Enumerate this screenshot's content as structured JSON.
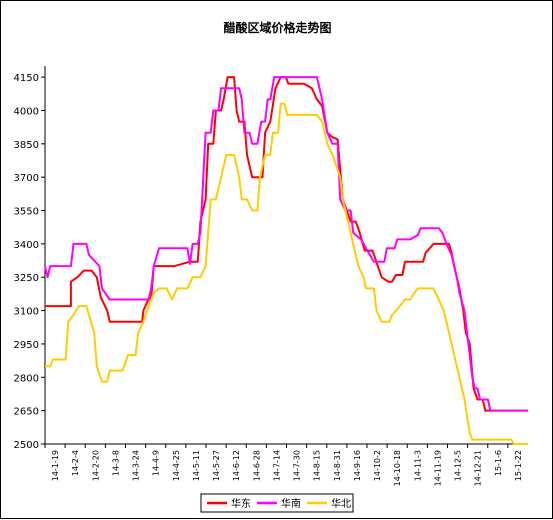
{
  "chart_data": {
    "type": "line",
    "title": "醋酸区域价格走势图",
    "ylim": [
      2500,
      4200
    ],
    "yticks": [
      2500,
      2650,
      2800,
      2950,
      3100,
      3250,
      3400,
      3550,
      3700,
      3850,
      4000,
      4150
    ],
    "x_tick_labels": [
      "14-1-19",
      "14-2-4",
      "14-2-20",
      "14-3-8",
      "14-3-24",
      "14-4-9",
      "14-4-25",
      "14-5-11",
      "14-5-27",
      "14-6-12",
      "14-6-28",
      "14-7-14",
      "14-7-30",
      "14-8-15",
      "14-8-31",
      "14-9-16",
      "14-10-2",
      "14-10-18",
      "14-11-3",
      "14-11-19",
      "14-12-5",
      "14-12-21",
      "15-1-6",
      "15-1-22"
    ],
    "x_range_days": [
      0,
      373
    ],
    "grid": false,
    "legend_placement": "bottom",
    "series": [
      {
        "name": "华东",
        "color": "#ff0000",
        "points": [
          [
            0,
            3120
          ],
          [
            20,
            3120
          ],
          [
            20,
            3230
          ],
          [
            25,
            3250
          ],
          [
            30,
            3280
          ],
          [
            36,
            3280
          ],
          [
            40,
            3250
          ],
          [
            43,
            3160
          ],
          [
            48,
            3100
          ],
          [
            50,
            3050
          ],
          [
            60,
            3050
          ],
          [
            70,
            3050
          ],
          [
            75,
            3050
          ],
          [
            76,
            3100
          ],
          [
            79,
            3140
          ],
          [
            82,
            3160
          ],
          [
            84,
            3300
          ],
          [
            90,
            3300
          ],
          [
            100,
            3300
          ],
          [
            112,
            3320
          ],
          [
            118,
            3320
          ],
          [
            120,
            3500
          ],
          [
            124,
            3600
          ],
          [
            126,
            3850
          ],
          [
            130,
            3850
          ],
          [
            132,
            4000
          ],
          [
            136,
            4000
          ],
          [
            138,
            4050
          ],
          [
            141,
            4150
          ],
          [
            146,
            4150
          ],
          [
            148,
            4000
          ],
          [
            150,
            3950
          ],
          [
            152,
            3950
          ],
          [
            154,
            3950
          ],
          [
            156,
            3800
          ],
          [
            160,
            3700
          ],
          [
            168,
            3700
          ],
          [
            170,
            3900
          ],
          [
            174,
            3950
          ],
          [
            178,
            4100
          ],
          [
            182,
            4150
          ],
          [
            186,
            4150
          ],
          [
            188,
            4120
          ],
          [
            200,
            4120
          ],
          [
            206,
            4100
          ],
          [
            210,
            4050
          ],
          [
            214,
            4020
          ],
          [
            218,
            3900
          ],
          [
            222,
            3880
          ],
          [
            226,
            3870
          ],
          [
            230,
            3600
          ],
          [
            236,
            3500
          ],
          [
            240,
            3500
          ],
          [
            243,
            3450
          ],
          [
            247,
            3370
          ],
          [
            253,
            3370
          ],
          [
            257,
            3300
          ],
          [
            260,
            3250
          ],
          [
            265,
            3230
          ],
          [
            268,
            3230
          ],
          [
            271,
            3260
          ],
          [
            276,
            3260
          ],
          [
            278,
            3320
          ],
          [
            284,
            3320
          ],
          [
            292,
            3320
          ],
          [
            294,
            3360
          ],
          [
            300,
            3400
          ],
          [
            305,
            3400
          ],
          [
            312,
            3400
          ],
          [
            314,
            3360
          ],
          [
            316,
            3300
          ],
          [
            320,
            3200
          ],
          [
            323,
            3100
          ],
          [
            325,
            3000
          ],
          [
            328,
            2950
          ],
          [
            331,
            2750
          ],
          [
            334,
            2700
          ],
          [
            338,
            2700
          ],
          [
            340,
            2650
          ],
          [
            360,
            2650
          ],
          [
            373,
            2650
          ]
        ]
      },
      {
        "name": "华南",
        "color": "#ff00ff",
        "points": [
          [
            0,
            3300
          ],
          [
            2,
            3250
          ],
          [
            4,
            3300
          ],
          [
            20,
            3300
          ],
          [
            22,
            3400
          ],
          [
            32,
            3400
          ],
          [
            34,
            3350
          ],
          [
            42,
            3300
          ],
          [
            44,
            3200
          ],
          [
            50,
            3150
          ],
          [
            60,
            3150
          ],
          [
            70,
            3150
          ],
          [
            80,
            3150
          ],
          [
            82,
            3200
          ],
          [
            84,
            3300
          ],
          [
            88,
            3380
          ],
          [
            110,
            3380
          ],
          [
            112,
            3310
          ],
          [
            114,
            3400
          ],
          [
            118,
            3400
          ],
          [
            120,
            3450
          ],
          [
            124,
            3900
          ],
          [
            128,
            3900
          ],
          [
            130,
            4000
          ],
          [
            134,
            4000
          ],
          [
            136,
            4100
          ],
          [
            140,
            4100
          ],
          [
            144,
            4100
          ],
          [
            148,
            4100
          ],
          [
            150,
            4100
          ],
          [
            152,
            4050
          ],
          [
            154,
            3900
          ],
          [
            158,
            3900
          ],
          [
            160,
            3850
          ],
          [
            164,
            3850
          ],
          [
            167,
            3950
          ],
          [
            170,
            3950
          ],
          [
            172,
            4050
          ],
          [
            174,
            4050
          ],
          [
            177,
            4150
          ],
          [
            210,
            4150
          ],
          [
            212,
            4100
          ],
          [
            214,
            4050
          ],
          [
            218,
            3900
          ],
          [
            222,
            3850
          ],
          [
            224,
            3850
          ],
          [
            226,
            3850
          ],
          [
            228,
            3600
          ],
          [
            232,
            3550
          ],
          [
            236,
            3550
          ],
          [
            238,
            3450
          ],
          [
            244,
            3420
          ],
          [
            249,
            3370
          ],
          [
            254,
            3320
          ],
          [
            262,
            3320
          ],
          [
            264,
            3380
          ],
          [
            270,
            3380
          ],
          [
            272,
            3420
          ],
          [
            282,
            3420
          ],
          [
            288,
            3440
          ],
          [
            290,
            3470
          ],
          [
            304,
            3470
          ],
          [
            307,
            3450
          ],
          [
            310,
            3400
          ],
          [
            314,
            3350
          ],
          [
            316,
            3300
          ],
          [
            318,
            3250
          ],
          [
            320,
            3180
          ],
          [
            324,
            3100
          ],
          [
            328,
            2900
          ],
          [
            330,
            2800
          ],
          [
            332,
            2750
          ],
          [
            334,
            2750
          ],
          [
            336,
            2700
          ],
          [
            342,
            2700
          ],
          [
            344,
            2650
          ],
          [
            360,
            2650
          ],
          [
            373,
            2650
          ]
        ]
      },
      {
        "name": "华北",
        "color": "#ffcc00",
        "points": [
          [
            0,
            2850
          ],
          [
            4,
            2850
          ],
          [
            6,
            2880
          ],
          [
            16,
            2880
          ],
          [
            18,
            3050
          ],
          [
            22,
            3080
          ],
          [
            26,
            3120
          ],
          [
            32,
            3120
          ],
          [
            34,
            3080
          ],
          [
            38,
            3000
          ],
          [
            40,
            2850
          ],
          [
            44,
            2780
          ],
          [
            48,
            2780
          ],
          [
            50,
            2830
          ],
          [
            60,
            2830
          ],
          [
            64,
            2900
          ],
          [
            70,
            2900
          ],
          [
            72,
            3000
          ],
          [
            76,
            3050
          ],
          [
            80,
            3120
          ],
          [
            82,
            3150
          ],
          [
            84,
            3180
          ],
          [
            88,
            3200
          ],
          [
            94,
            3200
          ],
          [
            98,
            3150
          ],
          [
            102,
            3200
          ],
          [
            110,
            3200
          ],
          [
            114,
            3250
          ],
          [
            120,
            3250
          ],
          [
            124,
            3300
          ],
          [
            128,
            3600
          ],
          [
            132,
            3600
          ],
          [
            136,
            3700
          ],
          [
            140,
            3800
          ],
          [
            146,
            3800
          ],
          [
            150,
            3700
          ],
          [
            152,
            3600
          ],
          [
            156,
            3600
          ],
          [
            160,
            3550
          ],
          [
            164,
            3550
          ],
          [
            166,
            3700
          ],
          [
            170,
            3800
          ],
          [
            174,
            3800
          ],
          [
            176,
            3900
          ],
          [
            180,
            3900
          ],
          [
            182,
            4030
          ],
          [
            185,
            4030
          ],
          [
            187,
            3980
          ],
          [
            210,
            3980
          ],
          [
            214,
            3950
          ],
          [
            218,
            3850
          ],
          [
            222,
            3800
          ],
          [
            228,
            3700
          ],
          [
            230,
            3600
          ],
          [
            234,
            3500
          ],
          [
            238,
            3400
          ],
          [
            242,
            3300
          ],
          [
            246,
            3250
          ],
          [
            248,
            3200
          ],
          [
            254,
            3200
          ],
          [
            256,
            3100
          ],
          [
            260,
            3050
          ],
          [
            266,
            3050
          ],
          [
            268,
            3080
          ],
          [
            274,
            3120
          ],
          [
            278,
            3150
          ],
          [
            282,
            3150
          ],
          [
            284,
            3170
          ],
          [
            288,
            3200
          ],
          [
            300,
            3200
          ],
          [
            304,
            3150
          ],
          [
            308,
            3100
          ],
          [
            312,
            3000
          ],
          [
            316,
            2900
          ],
          [
            320,
            2800
          ],
          [
            324,
            2700
          ],
          [
            328,
            2550
          ],
          [
            330,
            2520
          ],
          [
            340,
            2520
          ],
          [
            350,
            2520
          ],
          [
            360,
            2520
          ],
          [
            362,
            2500
          ],
          [
            373,
            2500
          ]
        ]
      }
    ]
  }
}
